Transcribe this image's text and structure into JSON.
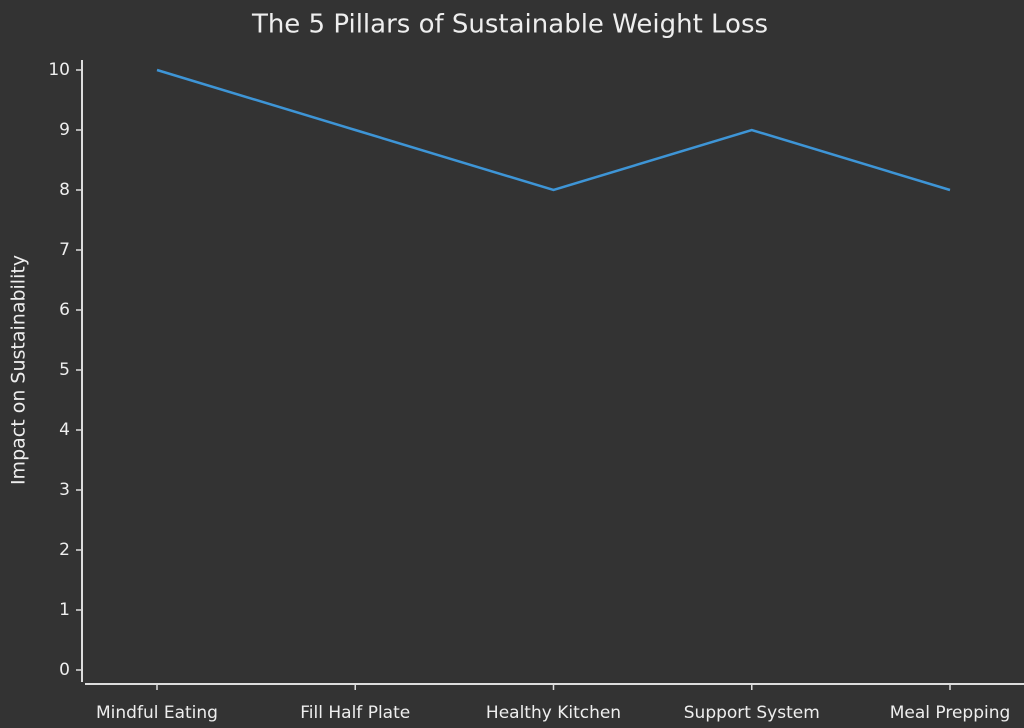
{
  "chart_data": {
    "type": "line",
    "title": "The 5 Pillars of Sustainable Weight Loss",
    "y_label": "Impact on Sustainability",
    "categories": [
      "Mindful Eating",
      "Fill Half Plate",
      "Healthy Kitchen",
      "Support System",
      "Meal Prepping"
    ],
    "values": [
      10,
      9,
      8,
      9,
      8
    ],
    "color": "#3e95d6",
    "ylim": [
      0,
      10
    ],
    "yticks": [
      0,
      1,
      2,
      3,
      4,
      5,
      6,
      7,
      8,
      9,
      10
    ],
    "grid": false
  }
}
